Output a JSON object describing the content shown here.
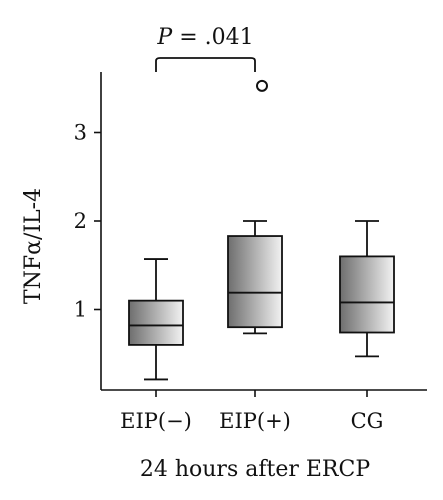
{
  "chart_data": {
    "type": "boxplot",
    "categories": [
      "EIP(−)",
      "EIP(+)",
      "CG"
    ],
    "xlabel": "24 hours after ERCP",
    "ylabel": "TNFα/IL-4",
    "ylim": [
      0,
      3.55
    ],
    "yticks": [
      1,
      2,
      3
    ],
    "ytick_labels": [
      "1",
      "2",
      "3"
    ],
    "boxes": [
      {
        "category": "EIP(−)",
        "whisker_low": 0.21,
        "q1": 0.6,
        "median": 0.82,
        "q3": 1.1,
        "whisker_high": 1.57,
        "outliers": []
      },
      {
        "category": "EIP(+)",
        "whisker_low": 0.73,
        "q1": 0.8,
        "median": 1.19,
        "q3": 1.83,
        "whisker_high": 2.0,
        "outliers": [
          3.55
        ]
      },
      {
        "category": "CG",
        "whisker_low": 0.47,
        "q1": 0.74,
        "median": 1.08,
        "q3": 1.6,
        "whisker_high": 2.0,
        "outliers": []
      }
    ],
    "annotations": [
      {
        "text": "P = .041",
        "between": [
          "EIP(−)",
          "EIP(+)"
        ]
      }
    ],
    "box_fill": {
      "dark": "#6e6e6e",
      "light": "#f2f2f2"
    },
    "grid": false,
    "legend": "none"
  }
}
